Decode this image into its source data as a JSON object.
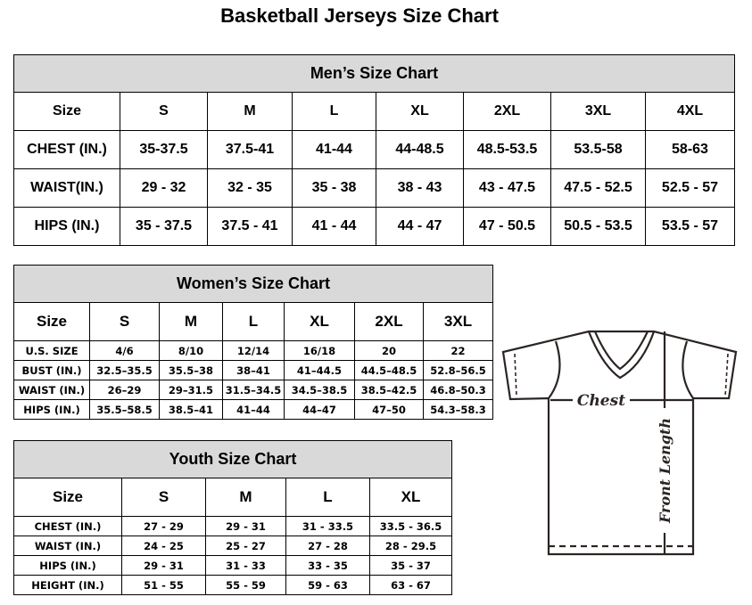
{
  "title": "Basketball Jerseys Size Chart",
  "men": {
    "heading": "Men’s Size Chart",
    "header": [
      "Size",
      "S",
      "M",
      "L",
      "XL",
      "2XL",
      "3XL",
      "4XL"
    ],
    "rows": [
      [
        "CHEST (IN.)",
        "35-37.5",
        "37.5-41",
        "41-44",
        "44-48.5",
        "48.5-53.5",
        "53.5-58",
        "58-63"
      ],
      [
        "WAIST(IN.)",
        "29 - 32",
        "32 - 35",
        "35 - 38",
        "38 - 43",
        "43 - 47.5",
        "47.5 - 52.5",
        "52.5 - 57"
      ],
      [
        "HIPS (IN.)",
        "35 - 37.5",
        "37.5 - 41",
        "41 - 44",
        "44 - 47",
        "47 - 50.5",
        "50.5 - 53.5",
        "53.5 - 57"
      ]
    ]
  },
  "women": {
    "heading": "Women’s Size Chart",
    "header": [
      "Size",
      "S",
      "M",
      "L",
      "XL",
      "2XL",
      "3XL"
    ],
    "rows": [
      [
        "U.S. SIZE",
        "4/6",
        "8/10",
        "12/14",
        "16/18",
        "20",
        "22"
      ],
      [
        "BUST (IN.)",
        "32.5–35.5",
        "35.5–38",
        "38–41",
        "41–44.5",
        "44.5–48.5",
        "52.8–56.5"
      ],
      [
        "WAIST (IN.)",
        "26–29",
        "29–31.5",
        "31.5–34.5",
        "34.5–38.5",
        "38.5–42.5",
        "46.8–50.3"
      ],
      [
        "HIPS (IN.)",
        "35.5–58.5",
        "38.5–41",
        "41–44",
        "44–47",
        "47–50",
        "54.3–58.3"
      ]
    ]
  },
  "youth": {
    "heading": "Youth Size Chart",
    "header": [
      "Size",
      "S",
      "M",
      "L",
      "XL"
    ],
    "rows": [
      [
        "CHEST (IN.)",
        "27 - 29",
        "29 - 31",
        "31 - 33.5",
        "33.5 - 36.5"
      ],
      [
        "WAIST (IN.)",
        "24 - 25",
        "25 - 27",
        "27 - 28",
        "28 - 29.5"
      ],
      [
        "HIPS (IN.)",
        "29 - 31",
        "31 - 33",
        "33 - 35",
        "35 - 37"
      ],
      [
        "HEIGHT (IN.)",
        "51 - 55",
        "55 - 59",
        "59 - 63",
        "63 - 67"
      ]
    ]
  },
  "diagram": {
    "chest_label": "Chest",
    "length_label": "Front Length"
  }
}
